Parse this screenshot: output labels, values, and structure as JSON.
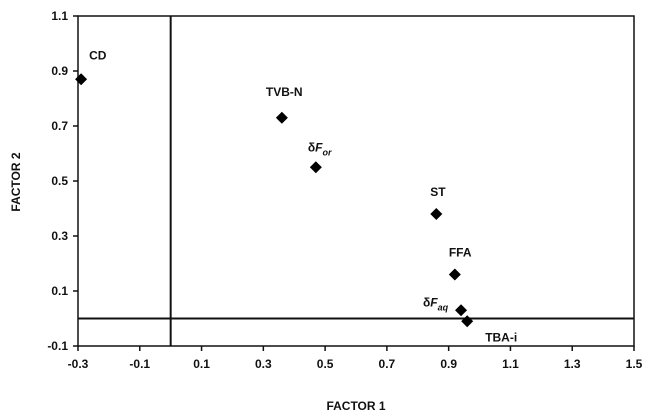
{
  "chart_data": {
    "type": "scatter",
    "xlabel": "FACTOR 1",
    "ylabel": "FACTOR 2",
    "xlim": [
      -0.3,
      1.5
    ],
    "ylim": [
      -0.1,
      1.1
    ],
    "x_ticks": [
      "-0.3",
      "-0.1",
      "0.1",
      "0.3",
      "0.5",
      "0.7",
      "0.9",
      "1.1",
      "1.3",
      "1.5"
    ],
    "y_ticks": [
      "1.1",
      "0.9",
      "0.7",
      "0.5",
      "0.3",
      "0.1",
      "-0.1"
    ],
    "grid": false,
    "reference_lines": {
      "x": 0,
      "y": 0
    },
    "marker": "diamond",
    "marker_color": "#000000",
    "points": [
      {
        "label": "CD",
        "x": -0.29,
        "y": 0.87
      },
      {
        "label": "TVB-N",
        "x": 0.36,
        "y": 0.73
      },
      {
        "label": "δF",
        "label_sub": "or",
        "x": 0.47,
        "y": 0.55
      },
      {
        "label": "ST",
        "x": 0.86,
        "y": 0.38
      },
      {
        "label": "FFA",
        "x": 0.92,
        "y": 0.16
      },
      {
        "label": "δF",
        "label_sub": "aq",
        "x": 0.94,
        "y": 0.03
      },
      {
        "label": "TBA-i",
        "x": 0.96,
        "y": -0.01
      }
    ]
  }
}
